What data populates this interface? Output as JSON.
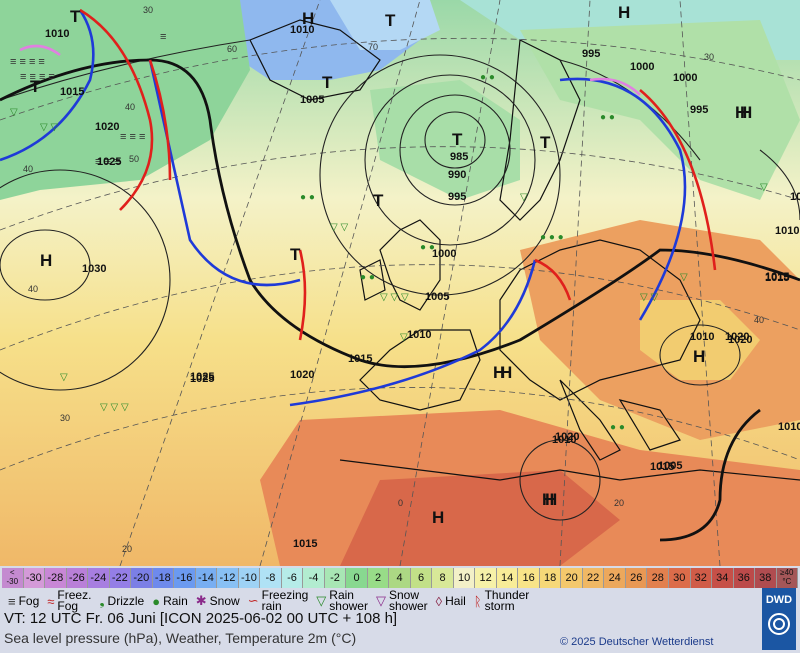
{
  "map": {
    "isobar_labels": [
      "1010",
      "1015",
      "1020",
      "1025",
      "1010",
      "1005",
      "1000",
      "995",
      "985",
      "990",
      "995",
      "1000",
      "1005",
      "1010",
      "1015",
      "1020",
      "1025",
      "1030",
      "1015",
      "1020",
      "1010",
      "1005",
      "1000",
      "995",
      "1010",
      "1015",
      "1020",
      "1010",
      "1015",
      "1015",
      "1020",
      "1010",
      "1015",
      "1025"
    ],
    "pressure_centers": [
      "H",
      "T",
      "T",
      "T",
      "H",
      "T",
      "H",
      "T",
      "T",
      "T",
      "H",
      "T",
      "H",
      "H",
      "H",
      "H",
      "H",
      "H",
      "H"
    ],
    "temp_ticks": [
      "30",
      "40",
      "50",
      "60",
      "70",
      "40",
      "40",
      "30",
      "20",
      "0",
      "20",
      "40",
      "30"
    ]
  },
  "legend": {
    "scale_labels": [
      "<\n-30",
      "-30",
      "-28",
      "-26",
      "-24",
      "-22",
      "-20",
      "-18",
      "-16",
      "-14",
      "-12",
      "-10",
      "-8",
      "-6",
      "-4",
      "-2",
      "0",
      "2",
      "4",
      "6",
      "8",
      "10",
      "12",
      "14",
      "16",
      "18",
      "20",
      "22",
      "24",
      "26",
      "28",
      "30",
      "32",
      "34",
      "36",
      "38",
      "≥40\n°C"
    ],
    "scale_colors": [
      "#c48ad0",
      "#d49ad8",
      "#c887d6",
      "#b97fd8",
      "#a77ee0",
      "#947ee6",
      "#7b7fe6",
      "#6e8aec",
      "#6b9af0",
      "#78aef2",
      "#88c0f4",
      "#9ed2f5",
      "#b0e2f5",
      "#b6ece8",
      "#b2ecd0",
      "#a8e6b4",
      "#88d890",
      "#98dc88",
      "#acd884",
      "#c2e088",
      "#d8e898",
      "#f3f0c8",
      "#f6f1a8",
      "#f8ec98",
      "#f8e488",
      "#f6d878",
      "#f4c86c",
      "#f0b864",
      "#eca85c",
      "#e89854",
      "#e2804e",
      "#dc6c4a",
      "#d05c48",
      "#c65048",
      "#bc4a4a",
      "#b04c50",
      "#a45658"
    ],
    "symbols": [
      {
        "glyph": "≡",
        "label": "Fog",
        "color": "#333"
      },
      {
        "glyph": "≈",
        "label": "Freez.\nFog",
        "color": "#c02020"
      },
      {
        "glyph": "❟",
        "label": "Drizzle",
        "color": "#2a8a2a"
      },
      {
        "glyph": "●",
        "label": "Rain",
        "color": "#2a8a2a"
      },
      {
        "glyph": "✱",
        "label": "Snow",
        "color": "#8a2a8a"
      },
      {
        "glyph": "∽",
        "label": "Freezing\nrain",
        "color": "#c02020"
      },
      {
        "glyph": "▽",
        "label": "Rain\nshower",
        "color": "#2a8a2a"
      },
      {
        "glyph": "▽",
        "label": "Snow\nshower",
        "color": "#8a2a8a"
      },
      {
        "glyph": "◊",
        "label": "Hail",
        "color": "#8a2a4a"
      },
      {
        "glyph": "ᚱ",
        "label": "Thunder\nstorm",
        "color": "#c02020"
      }
    ],
    "valid_time": "VT: 12 UTC Fr.  06 Juni [ICON 2025-06-02  00 UTC + 108 h]",
    "subtitle": "Sea level pressure (hPa), Weather, Temperature 2m (°C)",
    "copyright": "© 2025 Deutscher Wetterdienst",
    "logo_text": "DWD"
  }
}
